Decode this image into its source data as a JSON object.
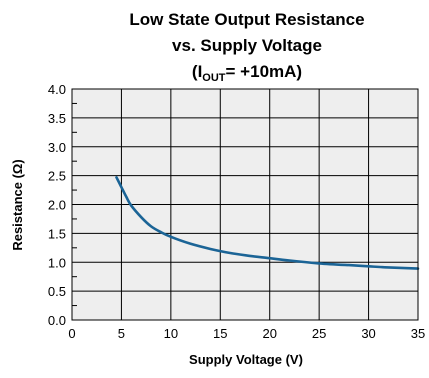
{
  "chart_data": {
    "type": "line",
    "title_lines": [
      "Low State Output Resistance",
      "vs. Supply Voltage"
    ],
    "subtitle": {
      "prefix": "(I",
      "subscript": "OUT",
      "suffix": "= +10mA)"
    },
    "xlabel": "Supply Voltage (V)",
    "ylabel": "Resistance (Ω)",
    "xlim": [
      0,
      35
    ],
    "ylim": [
      0.0,
      4.0
    ],
    "x_ticks": [
      "0",
      "5",
      "10",
      "15",
      "20",
      "25",
      "30",
      "35"
    ],
    "y_ticks": [
      "0.0",
      "0.5",
      "1.0",
      "1.5",
      "2.0",
      "2.5",
      "3.0",
      "3.5",
      "4.0"
    ],
    "grid": true,
    "plot_background": "#eeeeee",
    "grid_color": "#000000",
    "series": [
      {
        "color": "#1b6496",
        "x": [
          4.5,
          5,
          5.5,
          6,
          7,
          8,
          9,
          10,
          12,
          14,
          16,
          18,
          20,
          22,
          25,
          28,
          30,
          32,
          35
        ],
        "y": [
          2.47,
          2.3,
          2.13,
          1.98,
          1.78,
          1.62,
          1.52,
          1.44,
          1.32,
          1.23,
          1.16,
          1.11,
          1.07,
          1.03,
          0.98,
          0.95,
          0.93,
          0.91,
          0.89
        ]
      }
    ]
  }
}
